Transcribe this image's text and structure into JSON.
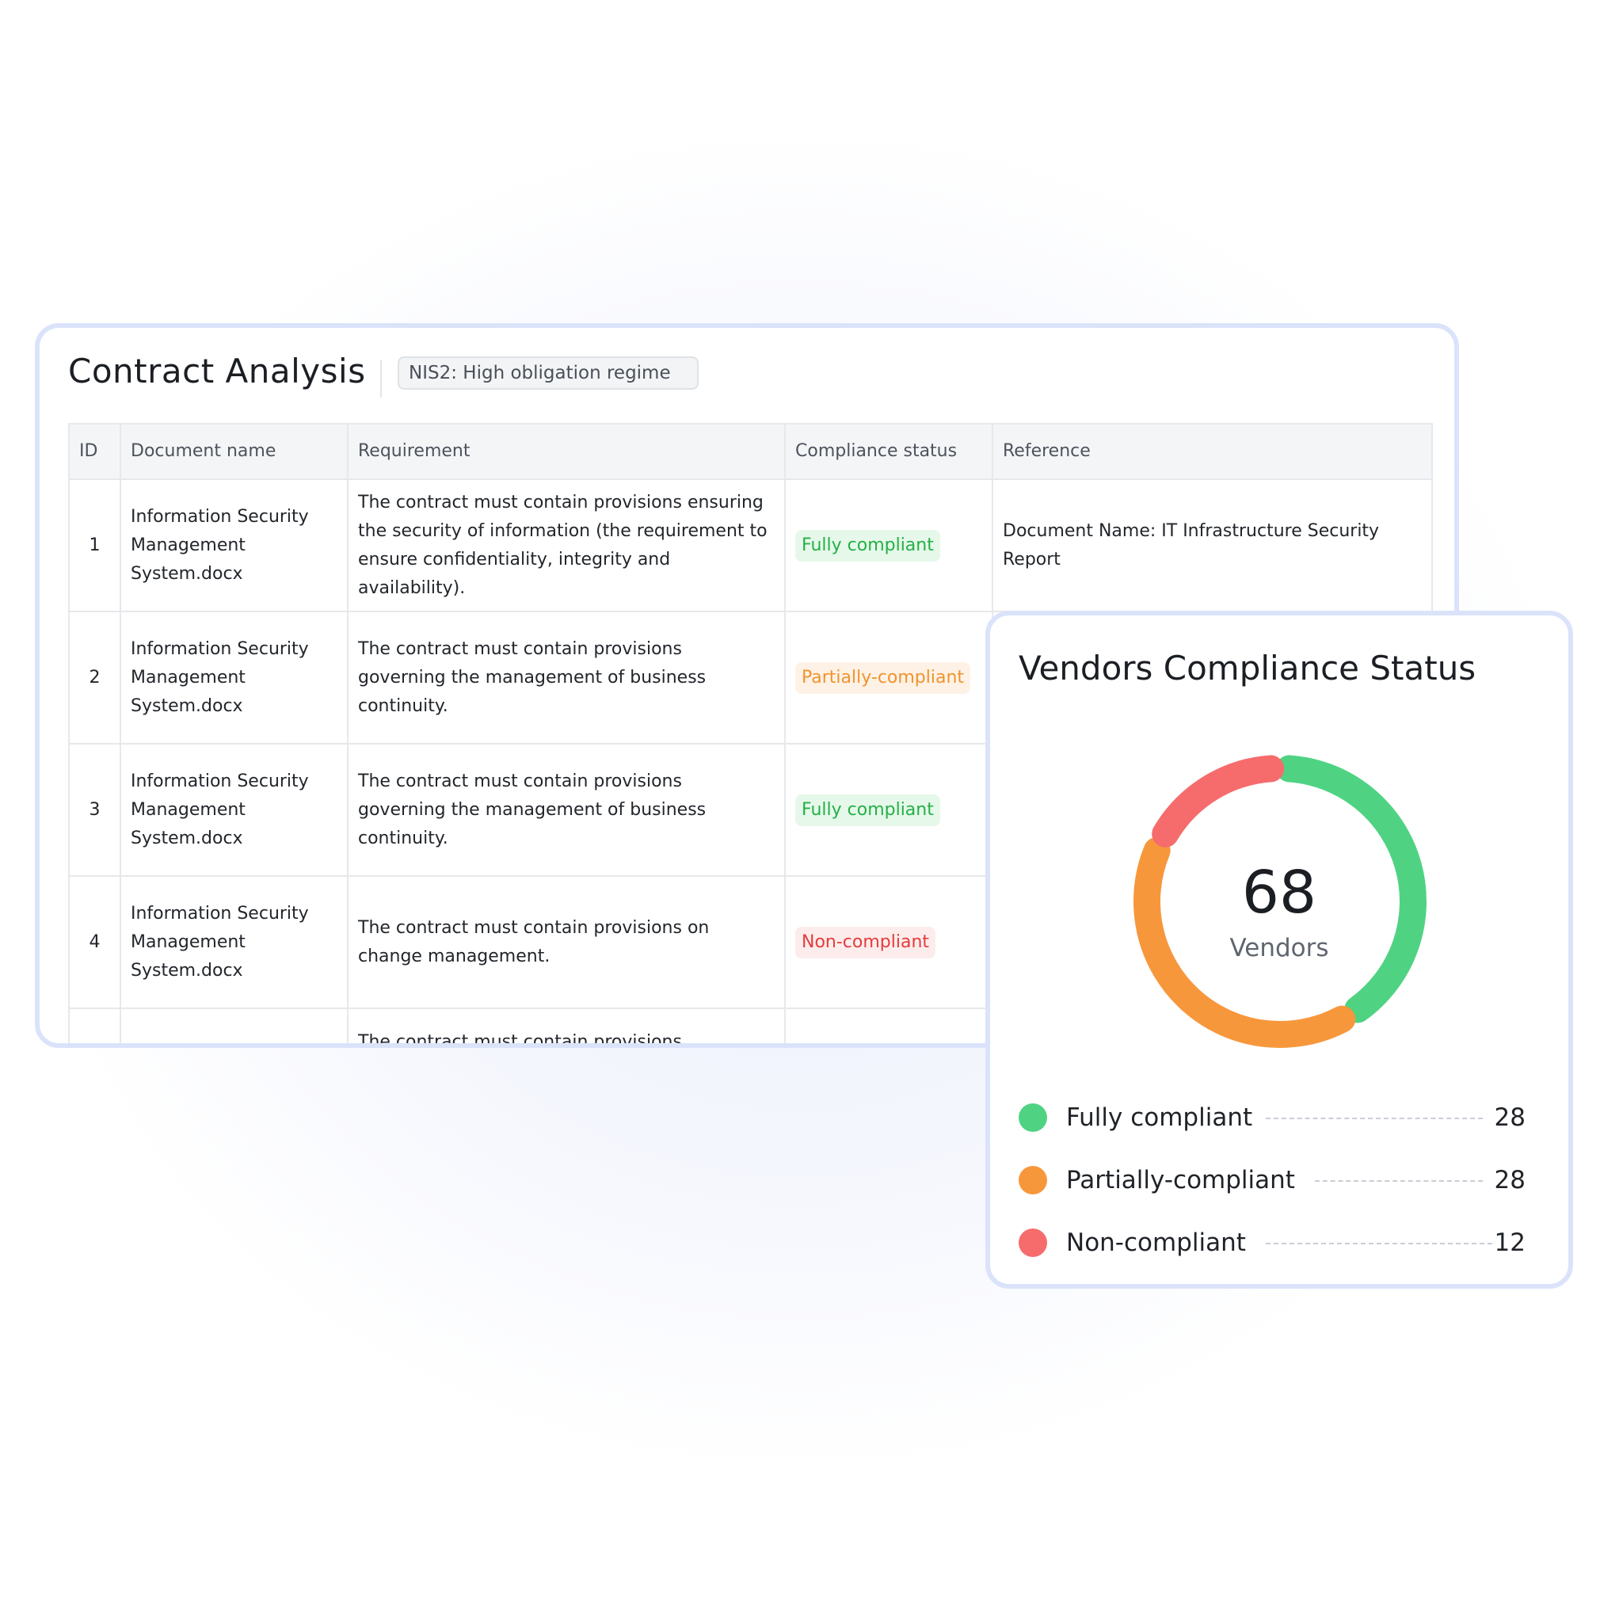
{
  "contract_analysis": {
    "title": "Contract Analysis",
    "regime_tag": "NIS2: High obligation regime",
    "columns": [
      "ID",
      "Document name",
      "Requirement",
      "Compliance status",
      "Reference"
    ],
    "rows": [
      {
        "id": "1",
        "document": "Information Security Management System.docx",
        "requirement": "The contract must contain provisions ensuring the security of information (the requirement to ensure confidentiality, integrity and availability).",
        "status": "Fully compliant",
        "reference": "Document Name: IT Infrastructure Security Report"
      },
      {
        "id": "2",
        "document": "Information Security Management System.docx",
        "requirement": "The contract must contain provisions governing the management of business continuity.",
        "status": "Partially-compliant",
        "reference": ""
      },
      {
        "id": "3",
        "document": "Information Security Management System.docx",
        "requirement": "The contract must contain provisions governing the management of business continuity.",
        "status": "Fully compliant",
        "reference": ""
      },
      {
        "id": "4",
        "document": "Information Security Management System.docx",
        "requirement": "The contract must contain provisions on change management.",
        "status": "Non-compliant",
        "reference": ""
      },
      {
        "id": "",
        "document": "",
        "requirement": "The contract must contain provisions",
        "status": "",
        "reference": ""
      }
    ]
  },
  "vendors": {
    "title": "Vendors Compliance Status",
    "total": "68",
    "total_caption": "Vendors",
    "legend": [
      {
        "label": "Fully compliant",
        "value": "28"
      },
      {
        "label": "Partially-compliant",
        "value": "28"
      },
      {
        "label": "Non-compliant",
        "value": "12"
      }
    ]
  },
  "colors": {
    "fully": "#4fd383",
    "partial": "#f7973c",
    "non": "#f66c6c",
    "card_border": "#dbe3fb"
  },
  "chart_data": {
    "type": "pie",
    "categories": [
      "Fully compliant",
      "Partially-compliant",
      "Non-compliant"
    ],
    "values": [
      28,
      28,
      12
    ],
    "title": "Vendors Compliance Status",
    "center_value": 68,
    "center_label": "Vendors"
  }
}
